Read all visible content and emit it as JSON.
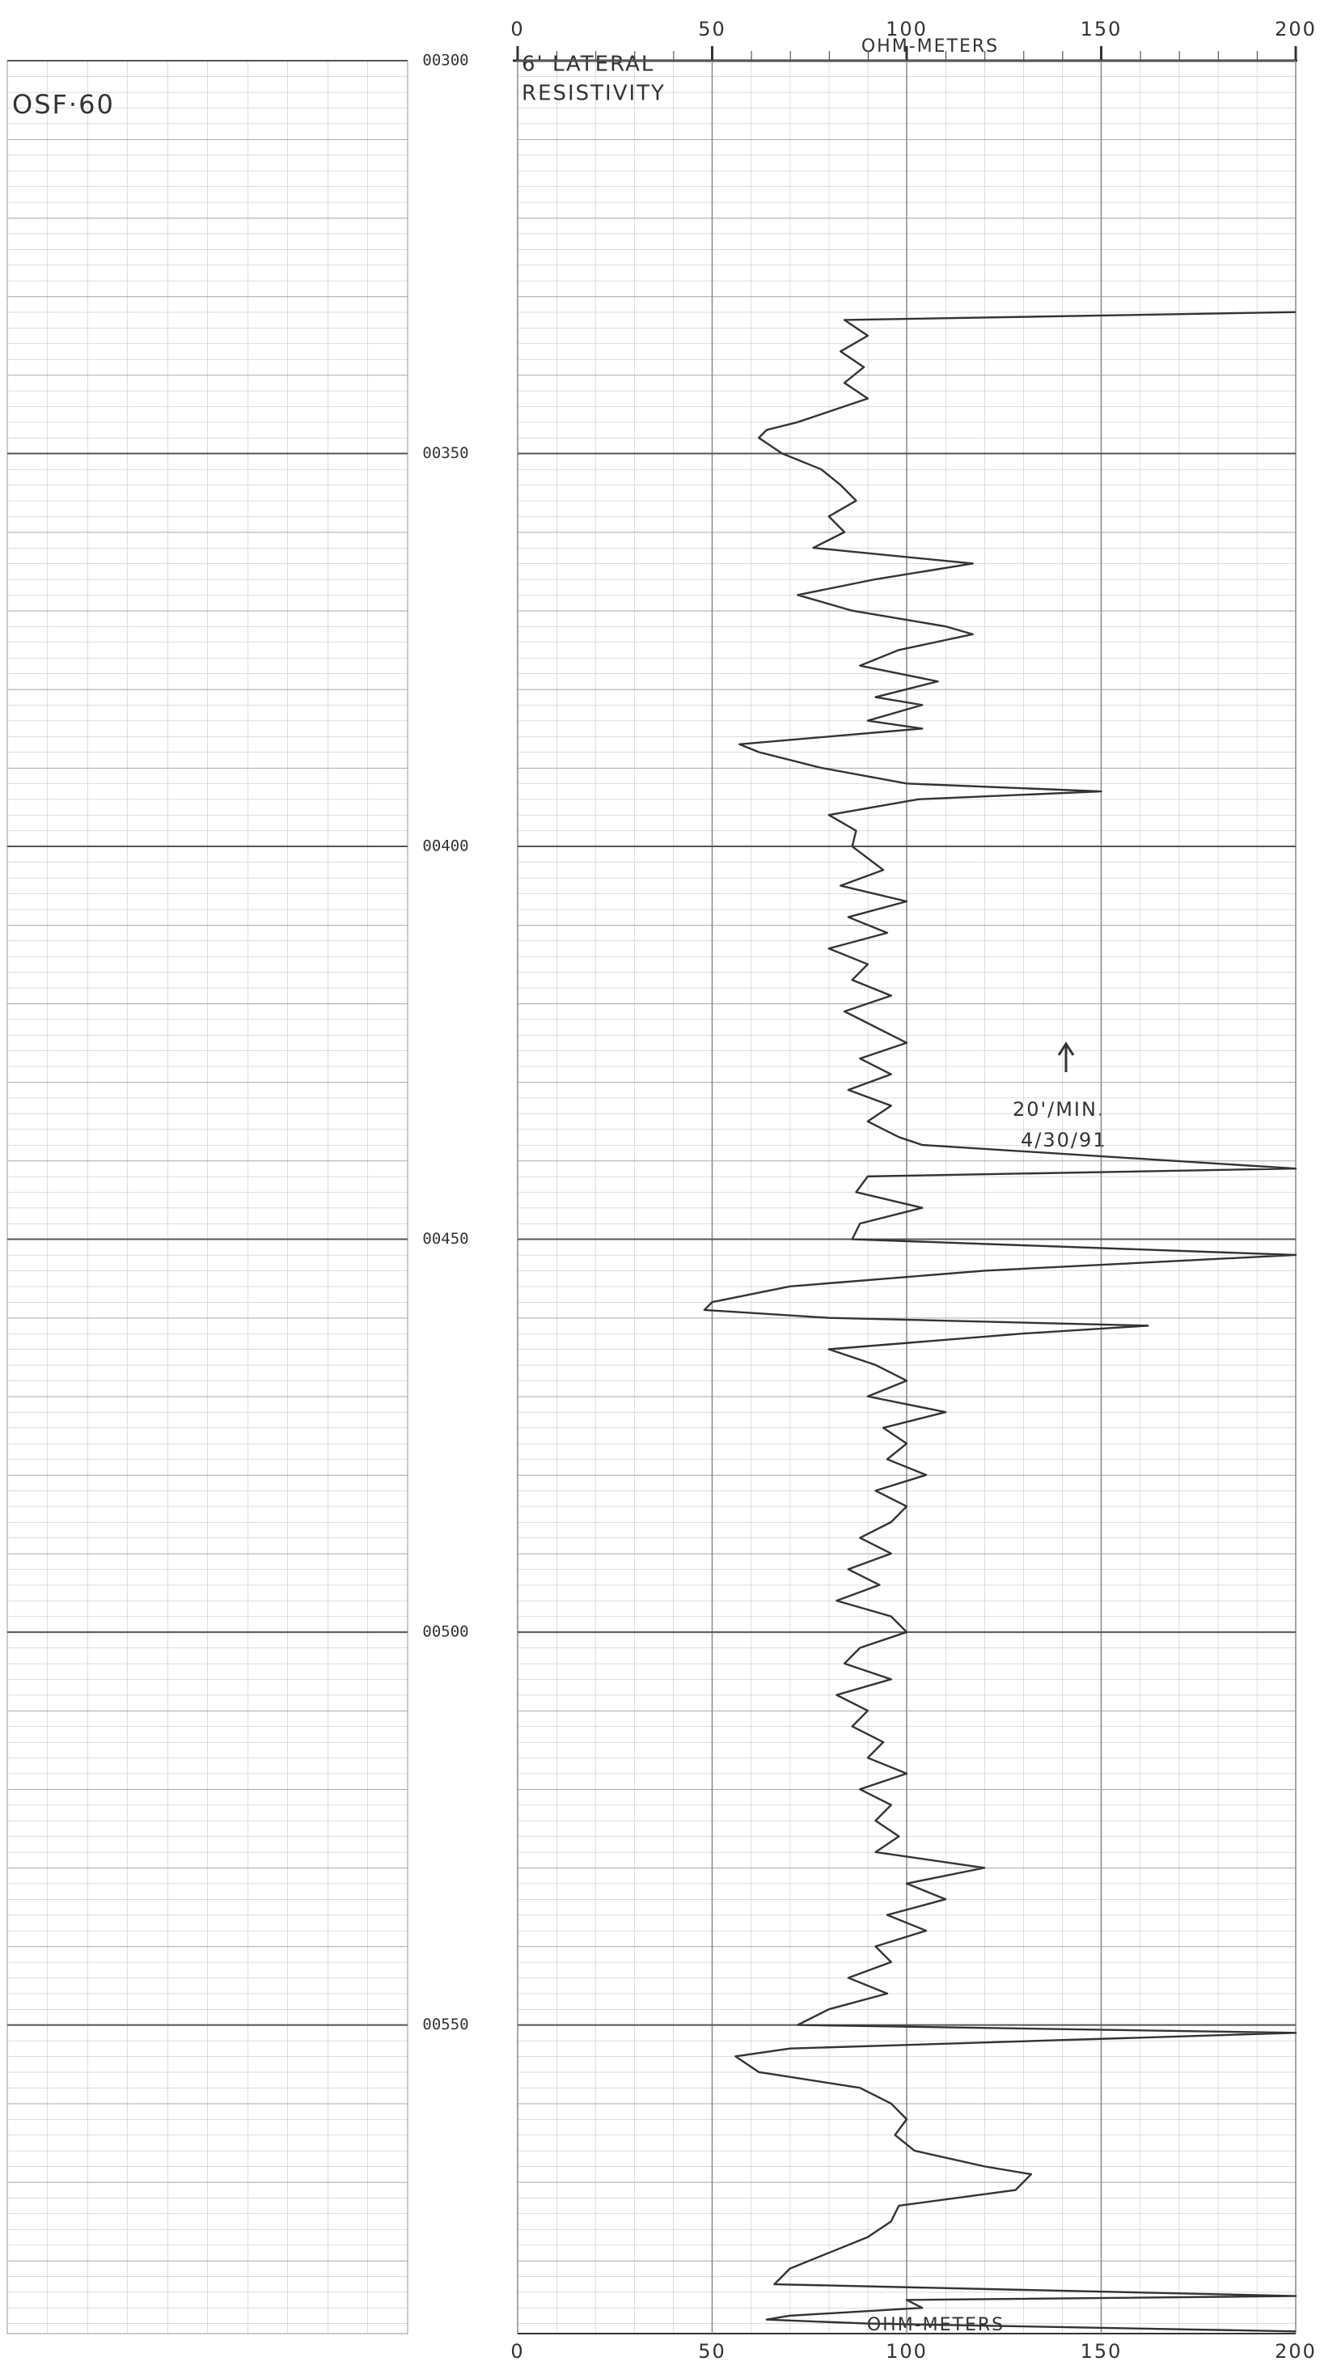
{
  "chart_data": {
    "type": "line",
    "well": "OSF·60",
    "title": [
      "6' LATERAL",
      "RESISTIVITY"
    ],
    "x_label": "OHM-METERS",
    "annotations": [
      "20'/MIN.",
      "4/30/91"
    ],
    "xlim": [
      0,
      200
    ],
    "xticks": [
      0,
      50,
      100,
      150,
      200
    ],
    "ylim": [
      300,
      590
    ],
    "yticks": [
      {
        "value": 300,
        "label": "00300"
      },
      {
        "value": 350,
        "label": "00350"
      },
      {
        "value": 400,
        "label": "00400"
      },
      {
        "value": 450,
        "label": "00450"
      },
      {
        "value": 500,
        "label": "00500"
      },
      {
        "value": 550,
        "label": "00550"
      }
    ],
    "grid": true,
    "depth": [
      332,
      333,
      335,
      337,
      339,
      341,
      343,
      345,
      346,
      347,
      348,
      350,
      352,
      354,
      356,
      358,
      360,
      362,
      364,
      366,
      368,
      370,
      372,
      373,
      375,
      377,
      379,
      381,
      382,
      384,
      385,
      387,
      388,
      390,
      392,
      393,
      394,
      396,
      398,
      400,
      403,
      405,
      407,
      409,
      411,
      413,
      415,
      417,
      419,
      421,
      423,
      425,
      427,
      429,
      431,
      433,
      435,
      437,
      438,
      441,
      442,
      444,
      446,
      448,
      450,
      452,
      454,
      456,
      458,
      459,
      460,
      461,
      462,
      464,
      466,
      468,
      470,
      472,
      474,
      476,
      478,
      480,
      482,
      484,
      486,
      488,
      490,
      492,
      494,
      496,
      498,
      500,
      502,
      504,
      506,
      508,
      510,
      512,
      514,
      516,
      518,
      520,
      522,
      524,
      526,
      528,
      530,
      532,
      534,
      536,
      538,
      540,
      542,
      544,
      546,
      548,
      550,
      551,
      553,
      554,
      556,
      558,
      560,
      562,
      564,
      566,
      568,
      569,
      571,
      573,
      575,
      577,
      579,
      581,
      583,
      584.5,
      585,
      586,
      587,
      587.5,
      588,
      589
    ],
    "series": [
      {
        "color": "#333333",
        "values": [
          200,
          84,
          90,
          83,
          89,
          84,
          90,
          78,
          72,
          64,
          62,
          68,
          78,
          83,
          87,
          80,
          84,
          76,
          117,
          92,
          72,
          86,
          110,
          117,
          98,
          88,
          108,
          92,
          104,
          90,
          104,
          57,
          62,
          78,
          100,
          150,
          103,
          80,
          87,
          86,
          94,
          83,
          100,
          85,
          95,
          80,
          90,
          86,
          96,
          84,
          92,
          100,
          88,
          96,
          85,
          96,
          90,
          98,
          104,
          200,
          90,
          87,
          104,
          88,
          86,
          200,
          120,
          70,
          50,
          48,
          80,
          162,
          130,
          80,
          92,
          100,
          90,
          110,
          94,
          100,
          95,
          105,
          92,
          100,
          96,
          88,
          96,
          85,
          93,
          82,
          96,
          100,
          88,
          84,
          96,
          82,
          90,
          86,
          94,
          90,
          100,
          88,
          96,
          92,
          98,
          92,
          120,
          100,
          110,
          95,
          105,
          92,
          96,
          85,
          95,
          80,
          72,
          200,
          70,
          56,
          62,
          88,
          96,
          100,
          97,
          102,
          120,
          132,
          128,
          98,
          96,
          90,
          80,
          70,
          66,
          200,
          100,
          104,
          70,
          64,
          90,
          200
        ]
      }
    ]
  }
}
